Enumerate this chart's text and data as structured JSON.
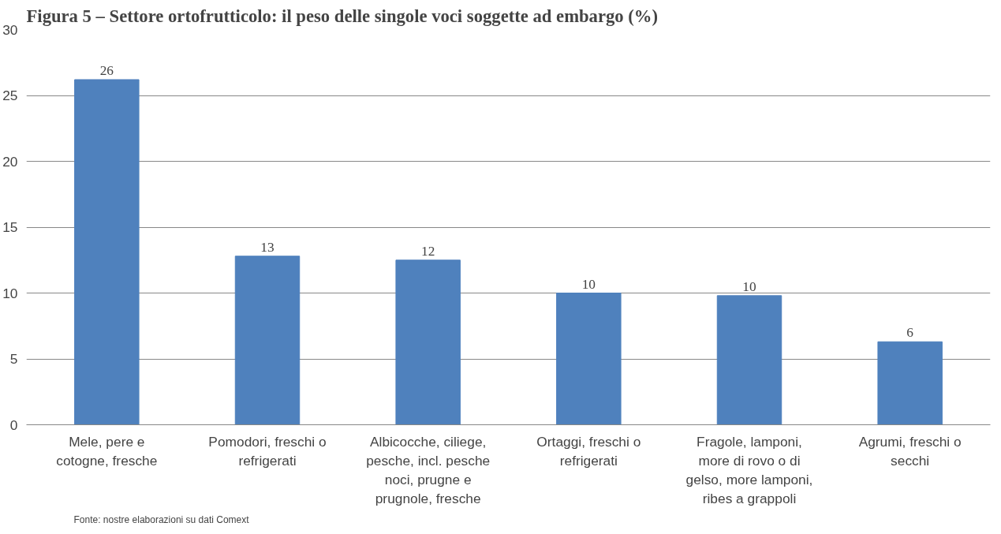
{
  "chart_data": {
    "type": "bar",
    "title": "Figura 5 – Settore ortofrutticolo: il peso delle singole voci soggette ad embargo (%)",
    "categories": [
      "Mele, pere e cotogne, fresche",
      "Pomodori, freschi o refrigerati",
      "Albicocche, ciliege, pesche, incl. pesche noci, prugne e prugnole, fresche",
      "Ortaggi, freschi o refrigerati",
      "Fragole, lamponi, more di rovo o di gelso, more lamponi, ribes a grappoli",
      "Agrumi, freschi o secchi"
    ],
    "values": [
      26.2,
      12.8,
      12.5,
      10.0,
      9.8,
      6.3
    ],
    "value_labels": [
      "26",
      "13",
      "12",
      "10",
      "10",
      "6"
    ],
    "color": "#4f81bd",
    "ylim": [
      0,
      30
    ],
    "yticks": [
      0,
      5,
      10,
      15,
      20,
      25,
      30
    ],
    "grid": "y",
    "annotations": [
      "Fonte: nostre elaborazioni su dati Comext"
    ]
  }
}
